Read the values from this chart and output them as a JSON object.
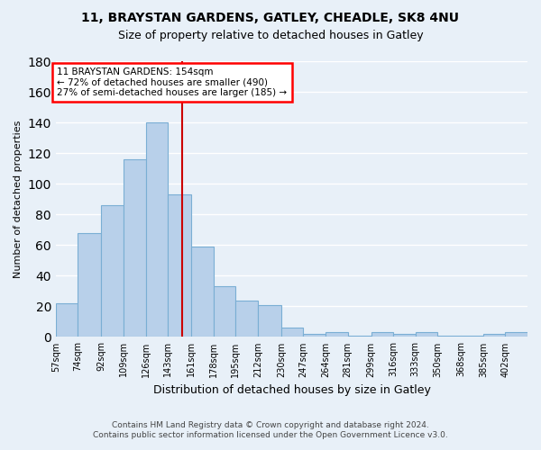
{
  "title1": "11, BRAYSTAN GARDENS, GATLEY, CHEADLE, SK8 4NU",
  "title2": "Size of property relative to detached houses in Gatley",
  "xlabel": "Distribution of detached houses by size in Gatley",
  "ylabel": "Number of detached properties",
  "footer1": "Contains HM Land Registry data © Crown copyright and database right 2024.",
  "footer2": "Contains public sector information licensed under the Open Government Licence v3.0.",
  "annotation_line1": "11 BRAYSTAN GARDENS: 154sqm",
  "annotation_line2": "← 72% of detached houses are smaller (490)",
  "annotation_line3": "27% of semi-detached houses are larger (185) →",
  "bar_left_edges": [
    57,
    74,
    92,
    109,
    126,
    143,
    161,
    178,
    195,
    212,
    230,
    247,
    264,
    281,
    299,
    316,
    333,
    350,
    368,
    385,
    402
  ],
  "bar_widths": [
    17,
    18,
    17,
    17,
    17,
    18,
    17,
    17,
    17,
    18,
    17,
    17,
    17,
    18,
    17,
    17,
    17,
    18,
    17,
    17,
    17
  ],
  "bar_heights": [
    22,
    68,
    86,
    116,
    140,
    93,
    59,
    33,
    24,
    21,
    6,
    2,
    3,
    1,
    3,
    2,
    3,
    1,
    1,
    2,
    3
  ],
  "bar_color": "#b8d0ea",
  "bar_edge_color": "#7aaed4",
  "vline_x": 154,
  "vline_color": "#cc0000",
  "bg_color": "#e8f0f8",
  "grid_color": "#ffffff",
  "ylim": [
    0,
    180
  ],
  "yticks": [
    0,
    20,
    40,
    60,
    80,
    100,
    120,
    140,
    160,
    180
  ]
}
